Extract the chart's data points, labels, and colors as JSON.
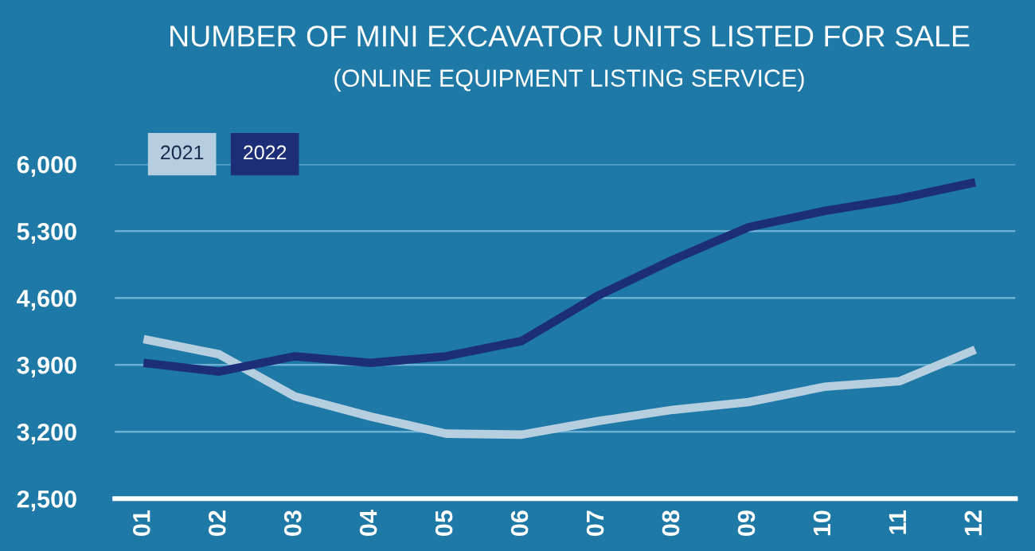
{
  "chart_data": {
    "type": "line",
    "title": "NUMBER OF MINI EXCAVATOR UNITS LISTED FOR SALE",
    "subtitle": "(ONLINE EQUIPMENT LISTING SERVICE)",
    "categories": [
      "01",
      "02",
      "03",
      "04",
      "05",
      "06",
      "07",
      "08",
      "09",
      "10",
      "11",
      "12"
    ],
    "series": [
      {
        "name": "2021",
        "color": "#b5cfe1",
        "values": [
          4170,
          4010,
          3570,
          3360,
          3180,
          3170,
          3310,
          3430,
          3510,
          3670,
          3730,
          4060
        ]
      },
      {
        "name": "2022",
        "color": "#1c2e78",
        "values": [
          3920,
          3830,
          3990,
          3920,
          3990,
          4150,
          4620,
          5000,
          5340,
          5510,
          5640,
          5810
        ]
      }
    ],
    "ylim": [
      2500,
      6000
    ],
    "yticks": [
      {
        "value": 2500,
        "label": "2,500"
      },
      {
        "value": 3200,
        "label": "3,200"
      },
      {
        "value": 3900,
        "label": "3,900"
      },
      {
        "value": 4600,
        "label": "4,600"
      },
      {
        "value": 5300,
        "label": "5,300"
      },
      {
        "value": 6000,
        "label": "6,000"
      }
    ],
    "grid": "y",
    "legend": "top left",
    "marker": "none",
    "line_style": "solid"
  }
}
